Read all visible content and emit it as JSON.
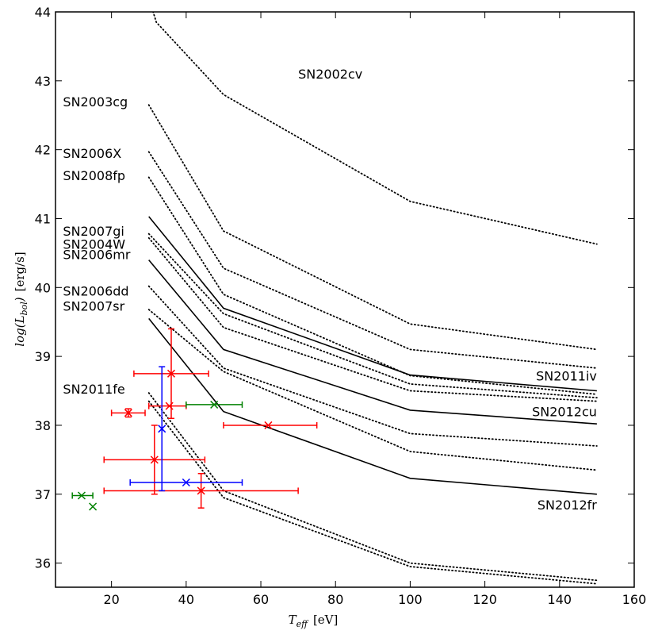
{
  "chart_data": {
    "type": "line",
    "xlabel": "T_eff [eV]",
    "ylabel": "log(L_bol) [erg/s]",
    "xlim": [
      5,
      160
    ],
    "ylim": [
      35.65,
      44
    ],
    "xticks": [
      20,
      40,
      60,
      80,
      100,
      120,
      140,
      160
    ],
    "yticks": [
      36,
      37,
      38,
      39,
      40,
      41,
      42,
      43,
      44
    ],
    "grid": false,
    "models": [
      {
        "name": "SN2002cv",
        "style": "dotted",
        "x": [
          30,
          32,
          50,
          100,
          150
        ],
        "y": [
          44.2,
          43.85,
          42.8,
          41.25,
          40.63
        ]
      },
      {
        "name": "SN2003cg",
        "style": "dotted",
        "x": [
          30,
          50,
          100,
          150
        ],
        "y": [
          42.65,
          40.82,
          39.47,
          39.1
        ]
      },
      {
        "name": "SN2006X",
        "style": "dotted",
        "x": [
          30,
          50,
          100,
          150
        ],
        "y": [
          41.97,
          40.28,
          39.1,
          38.83
        ]
      },
      {
        "name": "SN2008fp",
        "style": "dotted",
        "x": [
          30,
          50,
          100,
          150
        ],
        "y": [
          41.6,
          39.9,
          38.72,
          38.45
        ]
      },
      {
        "name": "SN2007gi",
        "style": "solid",
        "x": [
          30,
          50,
          100,
          150
        ],
        "y": [
          41.03,
          39.7,
          38.73,
          38.5
        ]
      },
      {
        "name": "SN2004W",
        "style": "dotted",
        "x": [
          30,
          50,
          100,
          150
        ],
        "y": [
          40.78,
          39.62,
          38.6,
          38.4
        ]
      },
      {
        "name": "SN2006mr",
        "style": "dotted",
        "x": [
          30,
          50,
          100,
          150
        ],
        "y": [
          40.72,
          39.42,
          38.5,
          38.35
        ]
      },
      {
        "name": "SN2006mr-solid",
        "style": "solid",
        "x": [
          30,
          50,
          100,
          150
        ],
        "y": [
          40.4,
          39.1,
          38.22,
          38.02
        ]
      },
      {
        "name": "SN2006dd",
        "style": "dotted",
        "x": [
          30,
          50,
          100,
          150
        ],
        "y": [
          40.02,
          38.83,
          37.88,
          37.7
        ]
      },
      {
        "name": "SN2007sr",
        "style": "dotted",
        "x": [
          30,
          50,
          100,
          150
        ],
        "y": [
          39.68,
          38.78,
          37.62,
          37.35
        ]
      },
      {
        "name": "SN2012fr",
        "style": "solid",
        "x": [
          30,
          50,
          100,
          150
        ],
        "y": [
          39.55,
          38.2,
          37.23,
          37.0
        ]
      },
      {
        "name": "SN2011fe-a",
        "style": "dotted",
        "x": [
          30,
          50,
          100,
          150
        ],
        "y": [
          38.47,
          37.05,
          36.0,
          35.75
        ]
      },
      {
        "name": "SN2011fe-b",
        "style": "dotted",
        "x": [
          30,
          50,
          100,
          150
        ],
        "y": [
          38.35,
          36.95,
          35.95,
          35.7
        ]
      }
    ],
    "labels": [
      {
        "text": "SN2002cv",
        "x": 70,
        "y": 43.1,
        "anchor": "start"
      },
      {
        "text": "SN2003cg",
        "x": 7,
        "y": 42.7,
        "anchor": "start"
      },
      {
        "text": "SN2006X",
        "x": 7,
        "y": 41.95,
        "anchor": "start"
      },
      {
        "text": "SN2008fp",
        "x": 7,
        "y": 41.63,
        "anchor": "start"
      },
      {
        "text": "SN2007gi",
        "x": 7,
        "y": 40.82,
        "anchor": "start"
      },
      {
        "text": "SN2004W",
        "x": 7,
        "y": 40.63,
        "anchor": "start"
      },
      {
        "text": "SN2006mr",
        "x": 7,
        "y": 40.48,
        "anchor": "start"
      },
      {
        "text": "SN2006dd",
        "x": 7,
        "y": 39.95,
        "anchor": "start"
      },
      {
        "text": "SN2007sr",
        "x": 7,
        "y": 39.73,
        "anchor": "start"
      },
      {
        "text": "SN2011fe",
        "x": 7,
        "y": 38.53,
        "anchor": "start"
      },
      {
        "text": "SN2011iv",
        "x": 150,
        "y": 38.72,
        "anchor": "end"
      },
      {
        "text": "SN2012cu",
        "x": 150,
        "y": 38.2,
        "anchor": "end"
      },
      {
        "text": "SN2012fr",
        "x": 150,
        "y": 36.85,
        "anchor": "end"
      }
    ],
    "observations": [
      {
        "color": "#ff0000",
        "x": 24.5,
        "y": 38.18,
        "xlo": 20,
        "xhi": 29,
        "ylo": 38.12,
        "yhi": 38.24
      },
      {
        "color": "#ff0000",
        "x": 36,
        "y": 38.75,
        "xlo": 26,
        "xhi": 46,
        "ylo": 38.1,
        "yhi": 39.4
      },
      {
        "color": "#ff0000",
        "x": 35.5,
        "y": 38.28,
        "xlo": 30,
        "xhi": 40,
        "ylo": 38.28,
        "yhi": 38.28
      },
      {
        "color": "#ff0000",
        "x": 62,
        "y": 38.0,
        "xlo": 50,
        "xhi": 75,
        "ylo": 38.0,
        "yhi": 38.0
      },
      {
        "color": "#ff0000",
        "x": 31.5,
        "y": 37.5,
        "xlo": 18,
        "xhi": 45,
        "ylo": 37.0,
        "yhi": 38.0
      },
      {
        "color": "#ff0000",
        "x": 44,
        "y": 37.05,
        "xlo": 18,
        "xhi": 70,
        "ylo": 36.8,
        "yhi": 37.3
      },
      {
        "color": "#0000ff",
        "x": 33.5,
        "y": 37.95,
        "xlo": 33.5,
        "xhi": 33.5,
        "ylo": 37.05,
        "yhi": 38.85
      },
      {
        "color": "#0000ff",
        "x": 40,
        "y": 37.17,
        "xlo": 25,
        "xhi": 55,
        "ylo": 37.17,
        "yhi": 37.17
      },
      {
        "color": "#008000",
        "x": 47.5,
        "y": 38.3,
        "xlo": 40,
        "xhi": 55,
        "ylo": 38.3,
        "yhi": 38.3
      },
      {
        "color": "#008000",
        "x": 12,
        "y": 36.98,
        "xlo": 9.5,
        "xhi": 15,
        "ylo": 36.98,
        "yhi": 36.98
      },
      {
        "color": "#008000",
        "x": 15,
        "y": 36.82,
        "xlo": 15,
        "xhi": 15,
        "ylo": 36.82,
        "yhi": 36.82
      }
    ]
  },
  "axis_text": {
    "x_var": "T",
    "x_sub": "eff",
    "x_unit": "[eV]",
    "y_var": "log(L",
    "y_sub": "bol",
    "y_close": ")",
    "y_unit": "[erg/s]"
  }
}
